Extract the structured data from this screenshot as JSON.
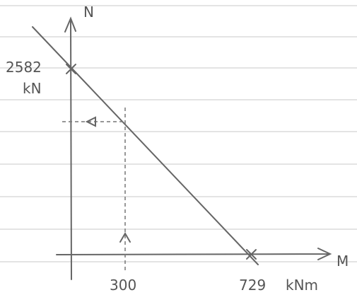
{
  "axes": {
    "y_label": "N",
    "x_label": "M"
  },
  "labels": {
    "n_value": "2582",
    "n_unit": "kN",
    "m_given": "300",
    "m_value": "729",
    "m_unit": "kNm"
  }
}
